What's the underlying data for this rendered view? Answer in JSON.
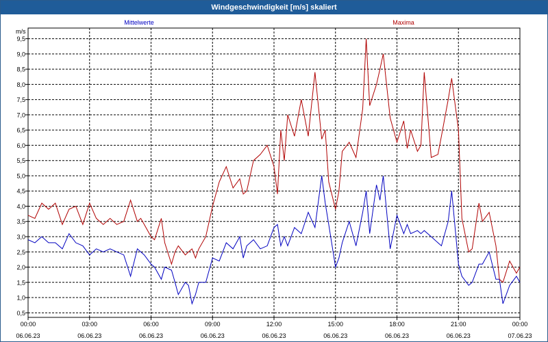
{
  "window": {
    "title": "Windgeschwindigkeit [m/s] skaliert"
  },
  "chart_data": {
    "type": "line",
    "title": "Windgeschwindigkeit [m/s] skaliert",
    "ylabel": "m/s",
    "ylim": [
      0.35,
      9.85
    ],
    "yticks": [
      "0,5",
      "1,0",
      "1,5",
      "2,0",
      "2,5",
      "3,0",
      "3,5",
      "4,0",
      "4,5",
      "5,0",
      "5,5",
      "6,0",
      "6,5",
      "7,0",
      "7,5",
      "8,0",
      "8,5",
      "9,0",
      "9,5"
    ],
    "xlim": [
      0,
      24
    ],
    "xticks": [
      {
        "time": "00:00",
        "date": "06.06.23"
      },
      {
        "time": "03:00",
        "date": "06.06.23"
      },
      {
        "time": "06:00",
        "date": "06.06.23"
      },
      {
        "time": "09:00",
        "date": "06.06.23"
      },
      {
        "time": "12:00",
        "date": "06.06.23"
      },
      {
        "time": "15:00",
        "date": "06.06.23"
      },
      {
        "time": "18:00",
        "date": "06.06.23"
      },
      {
        "time": "21:00",
        "date": "06.06.23"
      },
      {
        "time": "00:00",
        "date": "07.06.23"
      }
    ],
    "grid": true,
    "series": [
      {
        "name": "Mittelwerte",
        "color": "#0000c0",
        "x": [
          0,
          0.33,
          0.67,
          1,
          1.33,
          1.67,
          2,
          2.33,
          2.67,
          3,
          3.33,
          3.67,
          4,
          4.33,
          4.67,
          5,
          5.33,
          5.5,
          5.67,
          6,
          6.17,
          6.5,
          6.67,
          7,
          7.17,
          7.33,
          7.67,
          7.83,
          8,
          8.17,
          8.33,
          8.67,
          9,
          9.33,
          9.67,
          10,
          10.33,
          10.5,
          10.67,
          11,
          11.33,
          11.67,
          12,
          12.17,
          12.33,
          12.5,
          12.67,
          13,
          13.33,
          13.67,
          14,
          14.33,
          14.5,
          14.67,
          15,
          15.17,
          15.33,
          15.67,
          16,
          16.33,
          16.5,
          16.67,
          17,
          17.17,
          17.33,
          17.67,
          18,
          18.33,
          18.5,
          18.67,
          19,
          19.17,
          19.33,
          19.67,
          20,
          20.17,
          20.5,
          20.67,
          21,
          21.17,
          21.5,
          21.67,
          22,
          22.17,
          22.5,
          22.83,
          23,
          23.17,
          23.5,
          23.83,
          24
        ],
        "y": [
          2.9,
          2.8,
          3.0,
          2.8,
          2.8,
          2.6,
          3.1,
          2.8,
          2.7,
          2.4,
          2.6,
          2.5,
          2.6,
          2.5,
          2.4,
          1.7,
          2.6,
          2.5,
          2.4,
          2.1,
          2.0,
          1.6,
          2.0,
          1.9,
          1.5,
          1.1,
          1.5,
          1.4,
          0.8,
          1.1,
          1.5,
          1.5,
          2.3,
          2.2,
          2.8,
          2.6,
          3.0,
          2.3,
          2.7,
          2.9,
          2.6,
          2.7,
          3.3,
          3.4,
          2.7,
          3.0,
          2.7,
          3.3,
          3.1,
          3.8,
          3.3,
          5.0,
          4.1,
          3.4,
          2.0,
          2.3,
          2.8,
          3.5,
          2.7,
          3.8,
          4.5,
          3.1,
          4.7,
          4.2,
          5.0,
          2.6,
          3.7,
          3.1,
          3.4,
          3.1,
          3.2,
          3.1,
          3.2,
          3.0,
          2.8,
          2.7,
          3.5,
          4.5,
          2.1,
          1.7,
          1.4,
          1.5,
          2.1,
          2.1,
          2.5,
          1.6,
          1.6,
          0.8,
          1.4,
          1.7,
          1.5
        ]
      },
      {
        "name": "Maxima",
        "color": "#b00000",
        "x": [
          0,
          0.33,
          0.67,
          1,
          1.33,
          1.67,
          2,
          2.33,
          2.67,
          3,
          3.33,
          3.67,
          4,
          4.33,
          4.67,
          5,
          5.33,
          5.5,
          5.67,
          6,
          6.17,
          6.5,
          6.67,
          7,
          7.17,
          7.33,
          7.67,
          7.83,
          8,
          8.17,
          8.33,
          8.67,
          9,
          9.33,
          9.67,
          10,
          10.33,
          10.5,
          10.67,
          11,
          11.33,
          11.67,
          12,
          12.17,
          12.33,
          12.5,
          12.67,
          13,
          13.33,
          13.67,
          14,
          14.33,
          14.5,
          14.67,
          15,
          15.17,
          15.33,
          15.67,
          16,
          16.33,
          16.5,
          16.67,
          17,
          17.17,
          17.33,
          17.67,
          18,
          18.33,
          18.5,
          18.67,
          19,
          19.17,
          19.33,
          19.67,
          20,
          20.17,
          20.5,
          20.67,
          21,
          21.17,
          21.5,
          21.67,
          22,
          22.17,
          22.5,
          22.83,
          23,
          23.17,
          23.5,
          23.83,
          24
        ],
        "y": [
          3.7,
          3.6,
          4.1,
          3.9,
          4.1,
          3.4,
          3.9,
          4.0,
          3.4,
          4.1,
          3.6,
          3.4,
          3.6,
          3.4,
          3.5,
          4.2,
          3.5,
          3.6,
          3.4,
          3.0,
          2.9,
          3.6,
          2.8,
          2.1,
          2.5,
          2.7,
          2.4,
          2.5,
          2.6,
          2.3,
          2.6,
          3.0,
          4.0,
          4.8,
          5.3,
          4.6,
          4.9,
          4.4,
          4.5,
          5.5,
          5.7,
          6.0,
          5.3,
          4.4,
          6.5,
          5.5,
          7.0,
          6.3,
          7.5,
          6.3,
          8.4,
          6.2,
          6.5,
          4.8,
          3.9,
          4.5,
          5.8,
          6.1,
          5.6,
          7.2,
          9.5,
          7.3,
          8.0,
          8.5,
          9.0,
          6.9,
          6.1,
          6.8,
          5.9,
          6.5,
          5.8,
          6.0,
          8.4,
          5.6,
          5.7,
          6.3,
          7.5,
          8.2,
          6.5,
          3.6,
          2.5,
          2.6,
          4.1,
          3.5,
          3.8,
          2.7,
          1.6,
          1.5,
          2.2,
          1.8,
          2.0
        ]
      }
    ]
  }
}
